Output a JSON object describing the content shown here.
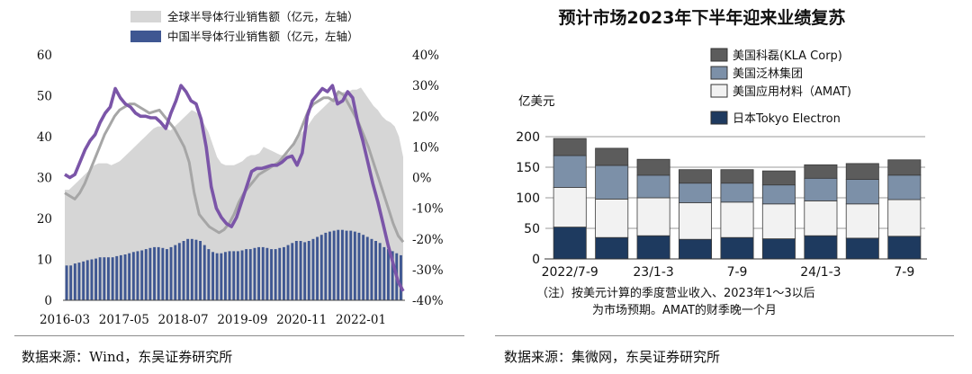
{
  "left": {
    "source": "数据来源：Wind，东吴证券研究所",
    "chart_data": {
      "type": "area",
      "legend_position": "top-center",
      "series": [
        {
          "name": "全球半导体行业销售额（亿元，左轴）",
          "kind": "area",
          "color": "#d6d6d6"
        },
        {
          "name": "中国半导体行业销售额（亿元，左轴）",
          "kind": "bar",
          "color": "#3f5792"
        },
        {
          "name": "",
          "kind": "line",
          "axis": "right",
          "color": "#7b55a8"
        },
        {
          "name": "",
          "kind": "line",
          "axis": "right",
          "color": "#a6a6a6"
        }
      ],
      "x_ticks": [
        "2016-03",
        "2017-05",
        "2018-07",
        "2019-09",
        "2020-11",
        "2022-01"
      ],
      "x_tick_index": [
        0,
        14,
        28,
        42,
        56,
        70
      ],
      "ylim_left": [
        0,
        60
      ],
      "yticks_left": [
        "0",
        "10",
        "20",
        "30",
        "40",
        "50",
        "60"
      ],
      "ylim_right": [
        -40,
        40
      ],
      "yticks_right": [
        "-40%",
        "-30%",
        "-20%",
        "-10%",
        "0%",
        "10%",
        "20%",
        "30%",
        "40%"
      ],
      "global_sales": [
        27,
        27,
        28,
        29,
        30,
        31,
        32,
        33,
        33.5,
        33.5,
        33.5,
        33,
        33.5,
        34,
        35,
        36,
        37,
        38,
        39,
        40,
        41,
        42,
        42.5,
        42.5,
        42,
        41.5,
        42.5,
        43.5,
        44.5,
        45.5,
        46.5,
        46,
        45,
        43,
        41,
        38,
        35,
        33.5,
        33,
        33,
        33,
        33.5,
        34,
        35,
        35.5,
        35.5,
        36,
        37.5,
        37,
        36.5,
        36,
        35.5,
        35.5,
        36,
        37.5,
        39.5,
        41,
        42,
        43.5,
        45,
        46,
        47,
        48,
        49,
        50,
        50.5,
        51,
        51,
        51.5,
        51.5,
        52,
        50.5,
        49,
        47.5,
        46.5,
        45,
        44,
        43.5,
        42.5,
        40,
        35
      ],
      "china_sales": [
        8.5,
        8.5,
        9,
        9.2,
        9.5,
        9.8,
        10,
        10.2,
        10.5,
        10.5,
        10.5,
        10.5,
        10.8,
        11,
        11.2,
        11.5,
        11.8,
        12,
        12.2,
        12.5,
        12.8,
        13,
        13,
        12.8,
        12.5,
        13,
        13.5,
        14,
        14.5,
        15,
        15,
        14.8,
        14.5,
        13.5,
        12.5,
        11.8,
        11.5,
        11.5,
        11.8,
        12,
        12,
        12,
        12.2,
        12.5,
        12.5,
        12.8,
        13,
        13,
        12.8,
        12.5,
        12.5,
        12.8,
        13,
        13.5,
        14,
        14.5,
        14.5,
        14.2,
        14.5,
        15,
        15.5,
        16,
        16.5,
        16.8,
        17,
        17.2,
        17.2,
        17,
        17,
        16.8,
        16.5,
        16,
        15.5,
        15,
        14.5,
        14,
        13,
        12.5,
        12,
        11.5,
        11
      ],
      "purple_growth": [
        1,
        0,
        1,
        5,
        9,
        12,
        14,
        18,
        21,
        23,
        29,
        26,
        24,
        23,
        21,
        20,
        20,
        19.5,
        19.5,
        18,
        16,
        21,
        25,
        30,
        28,
        25,
        24,
        19,
        10,
        -3,
        -10,
        -13,
        -15,
        -16,
        -13,
        -8,
        -3,
        2,
        3,
        3,
        3.5,
        4,
        4,
        5,
        6.5,
        7,
        4,
        8,
        20,
        25,
        27,
        29,
        28,
        30,
        24,
        25,
        28,
        26,
        18,
        12,
        5,
        -2,
        -8,
        -15,
        -22,
        -28,
        -34,
        -37
      ],
      "gray_growth": [
        -5,
        -6,
        -7,
        -5,
        -2,
        2,
        6,
        10,
        14,
        17,
        20,
        22,
        23,
        24,
        24,
        23,
        22,
        21,
        21.5,
        22,
        20,
        18,
        16,
        13,
        10,
        5,
        -5,
        -12,
        -14,
        -16,
        -17,
        -18,
        -17,
        -15,
        -12,
        -8,
        -5,
        -3,
        -1,
        1,
        2,
        3,
        4,
        5,
        7,
        9,
        11,
        14,
        18,
        22,
        24,
        25,
        26,
        26,
        25,
        28,
        27,
        24,
        21,
        18,
        14,
        10,
        5,
        0,
        -5,
        -10,
        -15,
        -19,
        -21
      ]
    }
  },
  "right": {
    "source": "数据来源：集微网，东吴证券研究所",
    "chart_data": {
      "type": "bar",
      "title": "预计市场2023年下半年迎来业绩复苏",
      "ylabel": "亿美元",
      "ylim": [
        0,
        200
      ],
      "yticks": [
        "0",
        "50",
        "100",
        "150",
        "200"
      ],
      "categories": [
        "2022/7-9",
        "",
        "23/1-3",
        "",
        "7-9",
        "",
        "24/1-3",
        "",
        "7-9"
      ],
      "legend_position": "top",
      "series": [
        {
          "name": "日本Tokyo Electron",
          "color": "#1e3a5f",
          "values": [
            52,
            35,
            38,
            32,
            35,
            33,
            38,
            34,
            37
          ]
        },
        {
          "name": "美国应用材料（AMAT)",
          "color": "#f2f2f2",
          "values": [
            65,
            63,
            62,
            60,
            58,
            57,
            57,
            56,
            60
          ]
        },
        {
          "name": "美国泛林集团",
          "color": "#7c90a8",
          "values": [
            52,
            55,
            37,
            32,
            31,
            31,
            37,
            40,
            40
          ]
        },
        {
          "name": "美国科磊(KLA Corp)",
          "color": "#5c5c5c",
          "values": [
            28,
            28,
            26,
            22,
            22,
            23,
            22,
            26,
            25
          ]
        }
      ],
      "footnote_line1": "（注）按美元计算的季度营业收入、2023年1～3以后",
      "footnote_line2": "为市场预期。AMAT的财季晚一个月"
    }
  }
}
